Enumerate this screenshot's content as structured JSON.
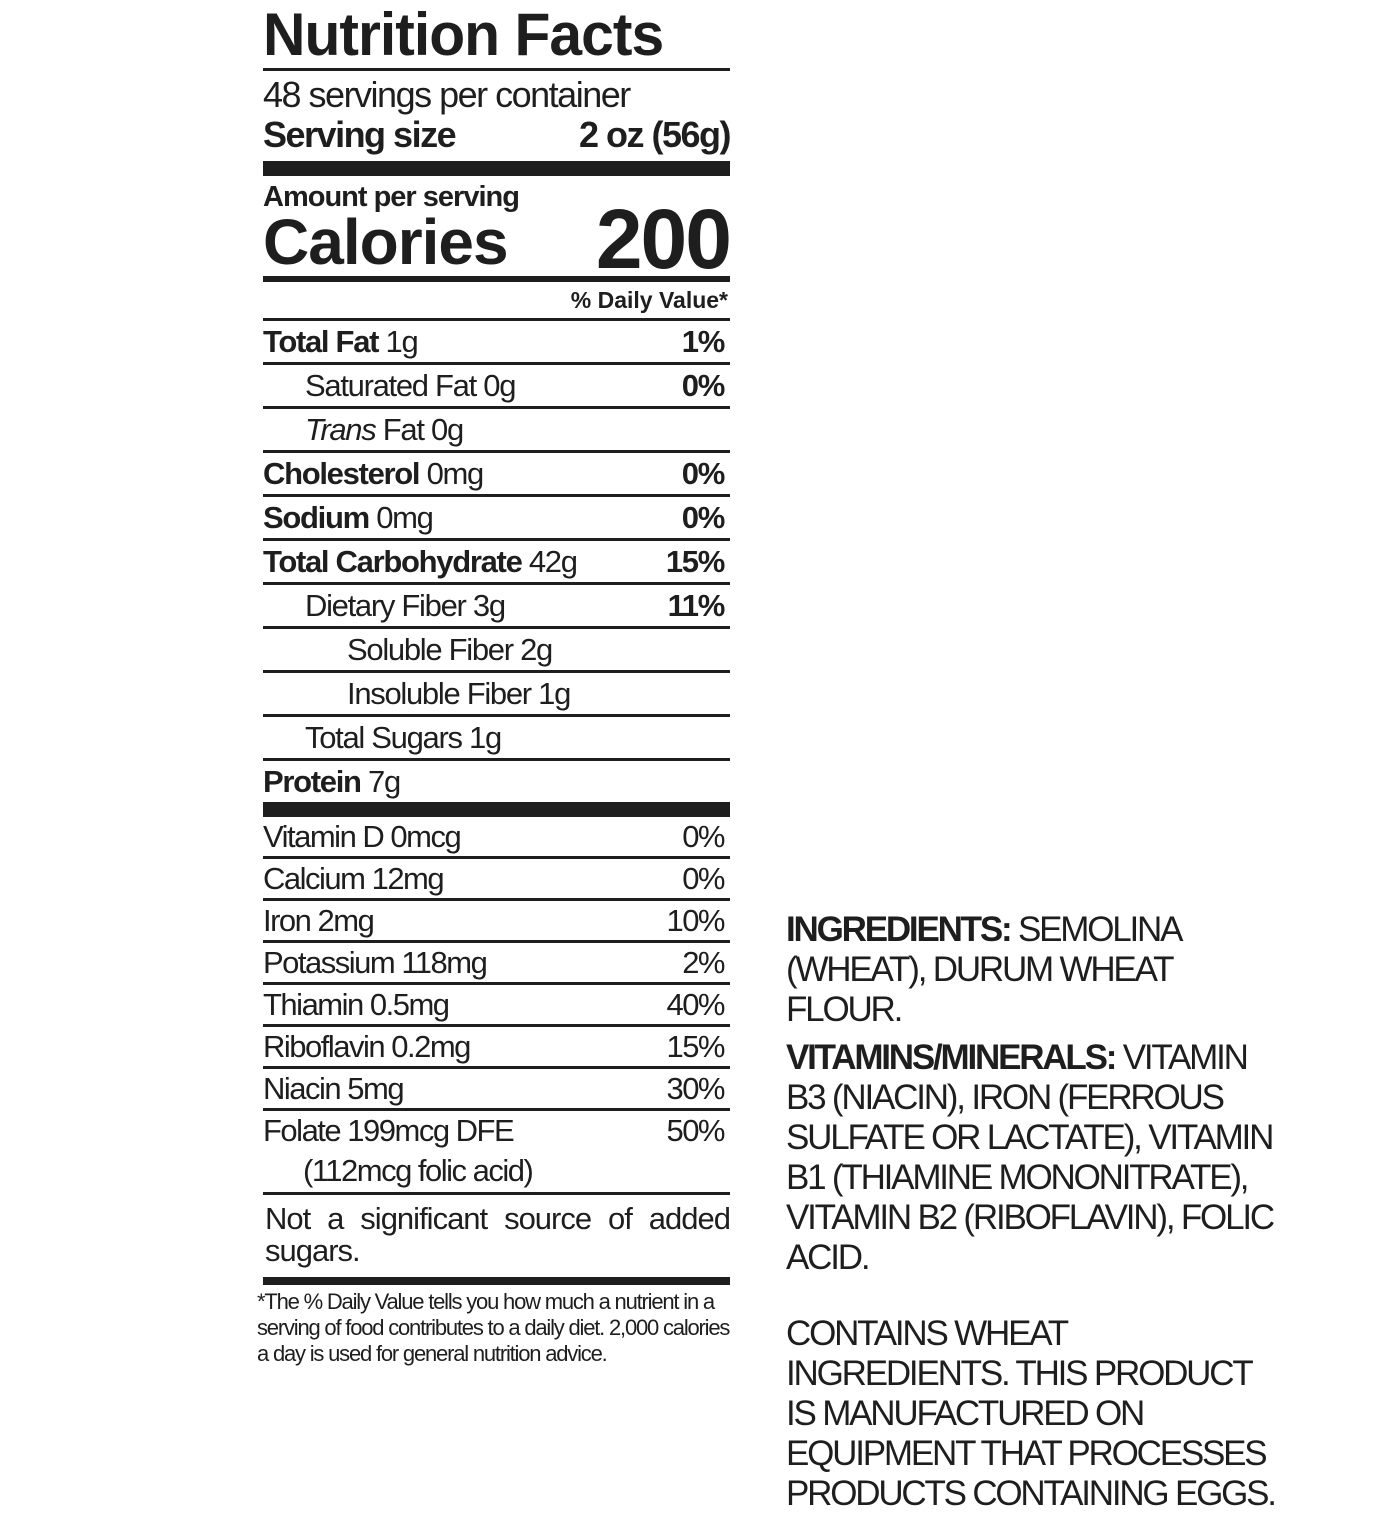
{
  "label": {
    "title": "Nutrition Facts",
    "servings_per_container": "48 servings per container",
    "serving_size_label": "Serving size",
    "serving_size_value": "2 oz (56g)",
    "amount_per_serving": "Amount per serving",
    "calories_label": "Calories",
    "calories_value": "200",
    "daily_value_header": "% Daily Value*",
    "nutrients": [
      {
        "name": "Total Fat",
        "amount": "1g",
        "dv": "1%",
        "bold": true,
        "indent": 0
      },
      {
        "name": "Saturated Fat",
        "amount": "0g",
        "dv": "0%",
        "bold": false,
        "indent": 1
      },
      {
        "name": "Trans",
        "name_rest": "Fat",
        "amount": "0g",
        "dv": "",
        "bold": false,
        "indent": 1,
        "italic": true
      },
      {
        "name": "Cholesterol",
        "amount": "0mg",
        "dv": "0%",
        "bold": true,
        "indent": 0
      },
      {
        "name": "Sodium",
        "amount": "0mg",
        "dv": "0%",
        "bold": true,
        "indent": 0
      },
      {
        "name": "Total Carbohydrate",
        "amount": "42g",
        "dv": "15%",
        "bold": true,
        "indent": 0
      },
      {
        "name": "Dietary Fiber",
        "amount": "3g",
        "dv": "11%",
        "bold": false,
        "indent": 1
      },
      {
        "name": "Soluble Fiber",
        "amount": "2g",
        "dv": "",
        "bold": false,
        "indent": 2
      },
      {
        "name": "Insoluble Fiber",
        "amount": "1g",
        "dv": "",
        "bold": false,
        "indent": 2
      },
      {
        "name": "Total Sugars",
        "amount": "1g",
        "dv": "",
        "bold": false,
        "indent": 1
      },
      {
        "name": "Protein",
        "amount": "7g",
        "dv": "",
        "bold": true,
        "indent": 0
      }
    ],
    "vitamins": [
      {
        "text": "Vitamin D 0mcg",
        "dv": "0%"
      },
      {
        "text": "Calcium 12mg",
        "dv": "0%"
      },
      {
        "text": "Iron 2mg",
        "dv": "10%"
      },
      {
        "text": "Potassium 118mg",
        "dv": "2%"
      },
      {
        "text": "Thiamin 0.5mg",
        "dv": "40%"
      },
      {
        "text": "Riboflavin 0.2mg",
        "dv": "15%"
      },
      {
        "text": "Niacin 5mg",
        "dv": "30%"
      },
      {
        "text": "Folate 199mcg DFE",
        "dv": "50%"
      }
    ],
    "folic_acid_note": "(112mcg folic acid)",
    "added_sugars_note": "Not a significant source of added sugars.",
    "footnote": "*The % Daily Value tells you how much a nutrient in a serving of food contributes to a daily diet. 2,000 calories a day is used for general nutrition advice."
  },
  "ingredients": {
    "ingredients_label": "INGREDIENTS:",
    "ingredients_text": "SEMOLINA (WHEAT), DURUM WHEAT FLOUR.",
    "vitamins_label": "VITAMINS/MINERALS:",
    "vitamins_text": "VITAMIN B3 (NIACIN), IRON (FERROUS SULFATE OR LACTATE), VITAMIN B1 (THIAMINE MONONITRATE), VITAMIN B2 (RIBOFLAVIN), FOLIC ACID.",
    "allergen_text": "CONTAINS WHEAT INGREDIENTS. THIS PRODUCT IS MANUFACTURED ON EQUIPMENT THAT PROCESSES PRODUCTS CONTAINING EGGS."
  }
}
